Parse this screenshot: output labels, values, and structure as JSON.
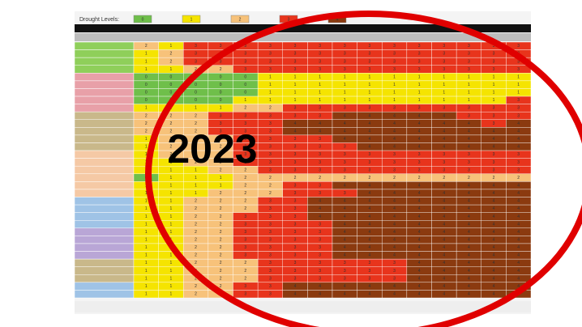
{
  "legend": {
    "label": "Drought Levels:",
    "levels": [
      0,
      1,
      2,
      3,
      4
    ]
  },
  "level_colors": [
    "#6fbf4a",
    "#f5e400",
    "#f7c27a",
    "#e8341c",
    "#8b3a0f"
  ],
  "overlay": {
    "text": "2023",
    "color": "#e00000"
  },
  "table": {
    "rows": [
      [
        2,
        1,
        3,
        3,
        3,
        3,
        3,
        3,
        3,
        3,
        3,
        3,
        3,
        3,
        3,
        3
      ],
      [
        1,
        2,
        3,
        3,
        3,
        3,
        3,
        3,
        3,
        3,
        3,
        3,
        3,
        3,
        3,
        3
      ],
      [
        1,
        2,
        3,
        3,
        3,
        3,
        3,
        3,
        3,
        3,
        3,
        3,
        3,
        3,
        3,
        3
      ],
      [
        1,
        1,
        2,
        2,
        3,
        3,
        3,
        3,
        3,
        3,
        3,
        3,
        3,
        3,
        3,
        3
      ],
      [
        0,
        0,
        0,
        0,
        0,
        1,
        1,
        1,
        1,
        1,
        1,
        1,
        1,
        1,
        1,
        1
      ],
      [
        0,
        0,
        0,
        0,
        0,
        1,
        1,
        1,
        1,
        1,
        1,
        1,
        1,
        1,
        1,
        1
      ],
      [
        0,
        0,
        0,
        0,
        0,
        1,
        1,
        1,
        1,
        1,
        1,
        1,
        1,
        1,
        1,
        1
      ],
      [
        0,
        0,
        0,
        0,
        1,
        1,
        1,
        1,
        1,
        1,
        1,
        1,
        1,
        1,
        1,
        3
      ],
      [
        1,
        1,
        1,
        1,
        2,
        2,
        3,
        3,
        3,
        3,
        3,
        3,
        3,
        3,
        3,
        3
      ],
      [
        2,
        2,
        2,
        3,
        3,
        3,
        3,
        3,
        4,
        4,
        4,
        4,
        4,
        3,
        3,
        3
      ],
      [
        2,
        2,
        2,
        3,
        3,
        3,
        4,
        4,
        4,
        4,
        4,
        4,
        4,
        4,
        3,
        4
      ],
      [
        2,
        2,
        2,
        3,
        3,
        3,
        4,
        4,
        4,
        4,
        4,
        4,
        4,
        4,
        4,
        4
      ],
      [
        1,
        2,
        2,
        2,
        3,
        3,
        3,
        3,
        4,
        4,
        4,
        4,
        4,
        4,
        4,
        4
      ],
      [
        1,
        2,
        2,
        2,
        3,
        3,
        3,
        3,
        3,
        4,
        4,
        4,
        4,
        4,
        4,
        4
      ],
      [
        1,
        2,
        2,
        2,
        3,
        3,
        3,
        3,
        3,
        3,
        3,
        3,
        3,
        3,
        3,
        3
      ],
      [
        1,
        1,
        2,
        2,
        3,
        3,
        3,
        3,
        3,
        3,
        3,
        3,
        3,
        3,
        3,
        3
      ],
      [
        1,
        1,
        1,
        2,
        2,
        3,
        3,
        3,
        3,
        3,
        3,
        3,
        3,
        3,
        3,
        3
      ],
      [
        0,
        1,
        1,
        1,
        2,
        2,
        2,
        2,
        2,
        2,
        2,
        2,
        2,
        2,
        2,
        2
      ],
      [
        1,
        1,
        1,
        1,
        2,
        2,
        3,
        3,
        4,
        4,
        4,
        4,
        4,
        4,
        4,
        4
      ],
      [
        1,
        1,
        1,
        2,
        2,
        2,
        3,
        3,
        3,
        4,
        4,
        4,
        4,
        4,
        4,
        4
      ],
      [
        1,
        1,
        2,
        2,
        2,
        3,
        3,
        4,
        4,
        4,
        4,
        4,
        4,
        4,
        4,
        4
      ],
      [
        1,
        1,
        2,
        2,
        2,
        3,
        3,
        4,
        4,
        4,
        4,
        4,
        4,
        4,
        4,
        4
      ],
      [
        1,
        1,
        2,
        2,
        3,
        3,
        3,
        4,
        4,
        4,
        4,
        4,
        4,
        4,
        4,
        4
      ],
      [
        1,
        1,
        2,
        2,
        3,
        3,
        3,
        3,
        4,
        4,
        4,
        4,
        4,
        4,
        4,
        4
      ],
      [
        1,
        1,
        2,
        2,
        3,
        3,
        3,
        3,
        4,
        4,
        4,
        4,
        4,
        4,
        4,
        4
      ],
      [
        1,
        1,
        2,
        2,
        3,
        3,
        3,
        3,
        4,
        4,
        4,
        4,
        4,
        4,
        4,
        4
      ],
      [
        1,
        1,
        2,
        2,
        3,
        3,
        3,
        3,
        4,
        4,
        4,
        4,
        4,
        4,
        4,
        4
      ],
      [
        1,
        1,
        2,
        2,
        3,
        3,
        3,
        3,
        4,
        4,
        4,
        4,
        4,
        4,
        4,
        4
      ],
      [
        1,
        1,
        2,
        2,
        2,
        3,
        3,
        3,
        3,
        3,
        3,
        4,
        4,
        4,
        4,
        4
      ],
      [
        1,
        1,
        2,
        2,
        2,
        3,
        3,
        3,
        3,
        3,
        3,
        4,
        4,
        4,
        4,
        4
      ],
      [
        1,
        1,
        2,
        2,
        2,
        3,
        3,
        3,
        3,
        3,
        3,
        4,
        4,
        4,
        4,
        4
      ],
      [
        1,
        1,
        2,
        2,
        3,
        3,
        4,
        4,
        4,
        4,
        4,
        4,
        4,
        4,
        4,
        4
      ],
      [
        1,
        1,
        2,
        2,
        3,
        3,
        4,
        4,
        4,
        4,
        4,
        4,
        4,
        4,
        4,
        4
      ]
    ]
  }
}
